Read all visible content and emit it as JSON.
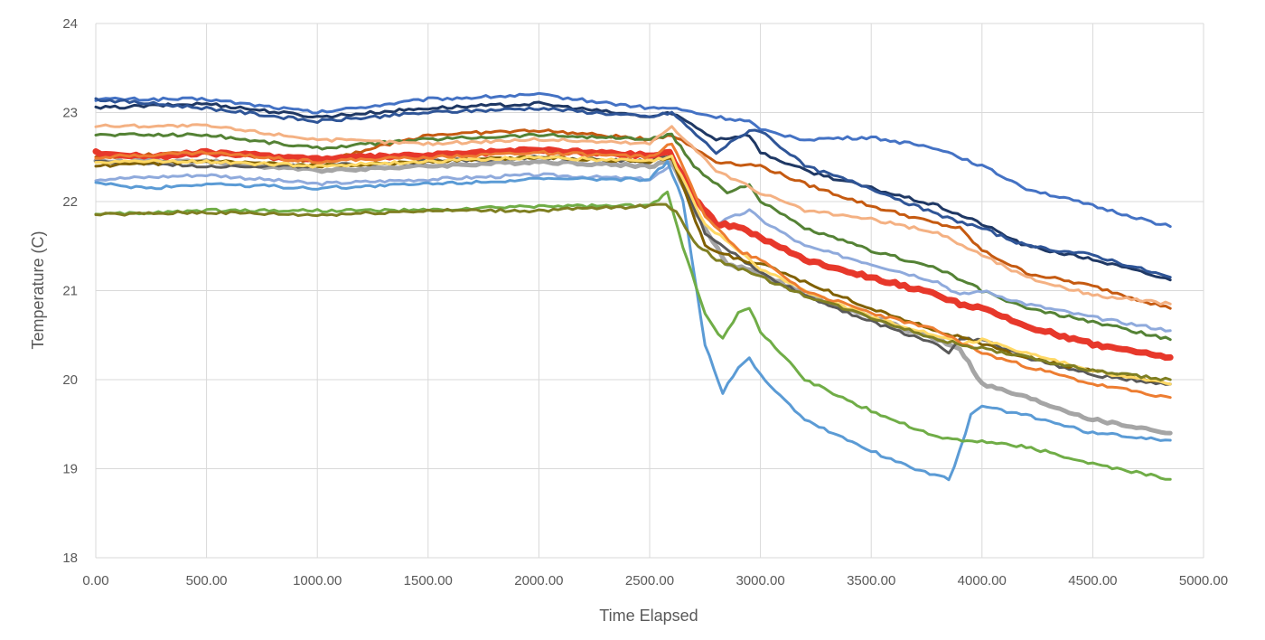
{
  "chart_data": {
    "type": "line",
    "title": "",
    "xlabel": "Time Elapsed",
    "ylabel": "Temperature (C)",
    "xlim": [
      0,
      5000
    ],
    "ylim": [
      18,
      24
    ],
    "xticks": [
      0,
      500,
      1000,
      1500,
      2000,
      2500,
      3000,
      3500,
      4000,
      4500,
      5000
    ],
    "xtick_labels": [
      "0.00",
      "500.00",
      "1000.00",
      "1500.00",
      "2000.00",
      "2500.00",
      "3000.00",
      "3500.00",
      "4000.00",
      "4500.00",
      "5000.00"
    ],
    "yticks": [
      18,
      19,
      20,
      21,
      22,
      23,
      24
    ],
    "ytick_labels": [
      "18",
      "19",
      "20",
      "21",
      "22",
      "23",
      "24"
    ],
    "grid": true,
    "legend": "none",
    "series": [
      {
        "color": "#4472c4",
        "width": 3,
        "x": [
          0,
          500,
          1000,
          1500,
          2000,
          2500,
          2600,
          2800,
          2950,
          3000,
          3200,
          3500,
          3800,
          4000,
          4200,
          4500,
          4850
        ],
        "y": [
          23.15,
          23.15,
          23.0,
          23.15,
          23.2,
          23.05,
          23.05,
          22.95,
          22.9,
          22.8,
          22.7,
          22.72,
          22.6,
          22.4,
          22.15,
          21.95,
          21.72
        ]
      },
      {
        "color": "#1f3864",
        "width": 3,
        "x": [
          0,
          500,
          1000,
          1500,
          2000,
          2500,
          2600,
          2800,
          2950,
          3000,
          3200,
          3500,
          3800,
          4000,
          4200,
          4500,
          4850
        ],
        "y": [
          23.05,
          23.1,
          22.95,
          23.05,
          23.1,
          22.95,
          23.0,
          22.7,
          22.75,
          22.55,
          22.35,
          22.15,
          21.95,
          21.75,
          21.5,
          21.35,
          21.12
        ]
      },
      {
        "color": "#2f5597",
        "width": 3,
        "x": [
          0,
          500,
          1000,
          1500,
          2000,
          2500,
          2600,
          2800,
          2950,
          3000,
          3200,
          3500,
          3800,
          4000,
          4200,
          4500,
          4850
        ],
        "y": [
          23.15,
          23.05,
          22.9,
          23.0,
          23.05,
          22.95,
          23.0,
          22.55,
          22.8,
          22.8,
          22.4,
          22.15,
          21.85,
          21.7,
          21.5,
          21.4,
          21.15
        ]
      },
      {
        "color": "#c55a11",
        "width": 3,
        "x": [
          0,
          500,
          1000,
          1500,
          2000,
          2500,
          2600,
          2800,
          3000,
          3200,
          3500,
          3800,
          3900,
          4000,
          4200,
          4500,
          4850
        ],
        "y": [
          22.5,
          22.55,
          22.45,
          22.75,
          22.8,
          22.7,
          22.75,
          22.45,
          22.4,
          22.2,
          21.95,
          21.75,
          21.7,
          21.45,
          21.2,
          21.05,
          20.8
        ]
      },
      {
        "color": "#548235",
        "width": 3,
        "x": [
          0,
          500,
          1000,
          1500,
          2000,
          2500,
          2600,
          2700,
          2850,
          2950,
          3000,
          3200,
          3500,
          3800,
          4000,
          4200,
          4500,
          4850
        ],
        "y": [
          22.75,
          22.75,
          22.6,
          22.7,
          22.75,
          22.7,
          22.75,
          22.4,
          22.1,
          22.2,
          22.0,
          21.7,
          21.45,
          21.25,
          21.0,
          20.8,
          20.65,
          20.45
        ]
      },
      {
        "color": "#f4b183",
        "width": 3,
        "x": [
          0,
          500,
          1000,
          1500,
          2000,
          2500,
          2600,
          2800,
          3000,
          3200,
          3500,
          3800,
          4000,
          4200,
          4500,
          4850
        ],
        "y": [
          22.85,
          22.85,
          22.7,
          22.65,
          22.7,
          22.65,
          22.85,
          22.35,
          22.1,
          21.9,
          21.8,
          21.65,
          21.4,
          21.15,
          20.95,
          20.85
        ]
      },
      {
        "color": "#8faadc",
        "width": 3,
        "x": [
          0,
          500,
          1000,
          1500,
          2000,
          2500,
          2600,
          2800,
          2950,
          3000,
          3200,
          3500,
          3800,
          3900,
          4000,
          4200,
          4500,
          4850
        ],
        "y": [
          22.25,
          22.3,
          22.2,
          22.25,
          22.3,
          22.25,
          22.4,
          21.75,
          21.9,
          21.8,
          21.5,
          21.3,
          21.1,
          20.95,
          21.0,
          20.85,
          20.7,
          20.55
        ]
      },
      {
        "color": "#e7382b",
        "width": 7,
        "x": [
          0,
          250,
          500,
          1000,
          1500,
          2000,
          2500,
          2590,
          2700,
          2800,
          2900,
          3000,
          3200,
          3500,
          3800,
          3900,
          4000,
          4200,
          4500,
          4850
        ],
        "y": [
          22.55,
          22.5,
          22.55,
          22.48,
          22.52,
          22.58,
          22.52,
          22.55,
          22.05,
          21.75,
          21.72,
          21.6,
          21.35,
          21.15,
          20.95,
          20.85,
          20.8,
          20.6,
          20.4,
          20.25
        ]
      },
      {
        "color": "#a5a5a5",
        "width": 5,
        "x": [
          0,
          500,
          1000,
          1500,
          2000,
          2500,
          2600,
          2700,
          2850,
          3000,
          3200,
          3500,
          3800,
          3900,
          4000,
          4200,
          4500,
          4850
        ],
        "y": [
          22.45,
          22.45,
          22.35,
          22.4,
          22.45,
          22.4,
          22.45,
          21.9,
          21.3,
          21.2,
          20.95,
          20.7,
          20.45,
          20.35,
          19.95,
          19.8,
          19.55,
          19.4
        ]
      },
      {
        "color": "#595959",
        "width": 3,
        "x": [
          0,
          500,
          1000,
          1500,
          2000,
          2500,
          2600,
          2750,
          3000,
          3200,
          3500,
          3800,
          3850,
          3900,
          4000,
          4200,
          4500,
          4850
        ],
        "y": [
          22.45,
          22.4,
          22.4,
          22.45,
          22.5,
          22.45,
          22.5,
          21.65,
          21.2,
          20.95,
          20.65,
          20.4,
          20.3,
          20.45,
          20.45,
          20.25,
          20.05,
          19.95
        ]
      },
      {
        "color": "#806000",
        "width": 3,
        "x": [
          0,
          500,
          1000,
          1500,
          2000,
          2500,
          2600,
          2750,
          2900,
          3000,
          3200,
          3500,
          3800,
          4000,
          4200,
          4500,
          4850
        ],
        "y": [
          22.4,
          22.45,
          22.4,
          22.45,
          22.5,
          22.45,
          22.5,
          21.5,
          21.35,
          21.3,
          21.1,
          20.8,
          20.55,
          20.4,
          20.25,
          20.1,
          19.95
        ]
      },
      {
        "color": "#ffd966",
        "width": 3,
        "x": [
          0,
          500,
          1000,
          1500,
          2000,
          2500,
          2600,
          2750,
          3000,
          3200,
          3500,
          3800,
          3900,
          4000,
          4200,
          4500,
          4850
        ],
        "y": [
          22.45,
          22.45,
          22.4,
          22.45,
          22.5,
          22.45,
          22.5,
          21.75,
          21.25,
          21.0,
          20.7,
          20.5,
          20.4,
          20.45,
          20.3,
          20.1,
          19.95
        ]
      },
      {
        "color": "#ed7d31",
        "width": 3,
        "x": [
          0,
          500,
          1000,
          1500,
          2000,
          2500,
          2600,
          2750,
          2900,
          3000,
          3200,
          3500,
          3800,
          4000,
          4200,
          4500,
          4850
        ],
        "y": [
          22.5,
          22.55,
          22.45,
          22.5,
          22.55,
          22.5,
          22.65,
          21.85,
          21.45,
          21.35,
          21.0,
          20.75,
          20.55,
          20.3,
          20.15,
          19.95,
          19.8
        ]
      },
      {
        "color": "#5b9bd5",
        "width": 3,
        "x": [
          0,
          250,
          500,
          1000,
          1500,
          2000,
          2500,
          2580,
          2650,
          2750,
          2830,
          2900,
          2950,
          3000,
          3200,
          3500,
          3700,
          3850,
          3900,
          3950,
          4000,
          4200,
          4500,
          4850
        ],
        "y": [
          22.2,
          22.15,
          22.2,
          22.15,
          22.2,
          22.25,
          22.25,
          22.45,
          22.0,
          20.4,
          19.85,
          20.15,
          20.25,
          20.05,
          19.55,
          19.2,
          19.0,
          18.88,
          19.2,
          19.6,
          19.7,
          19.6,
          19.4,
          19.32
        ]
      },
      {
        "color": "#70ad47",
        "width": 3,
        "x": [
          0,
          500,
          1000,
          1500,
          2000,
          2500,
          2580,
          2650,
          2750,
          2830,
          2900,
          2950,
          3000,
          3200,
          3500,
          3800,
          4000,
          4200,
          4500,
          4850
        ],
        "y": [
          21.85,
          21.9,
          21.9,
          21.9,
          21.95,
          21.95,
          22.1,
          21.5,
          20.75,
          20.45,
          20.75,
          20.8,
          20.55,
          20.0,
          19.65,
          19.35,
          19.3,
          19.25,
          19.05,
          18.88
        ]
      },
      {
        "color": "#7f7f22",
        "width": 3,
        "x": [
          0,
          500,
          1000,
          1500,
          2000,
          2500,
          2550,
          2620,
          2700,
          2800,
          2900,
          3000,
          3200,
          3500,
          3800,
          4000,
          4200,
          4500,
          4850
        ],
        "y": [
          21.85,
          21.88,
          21.85,
          21.9,
          21.9,
          21.95,
          21.98,
          21.9,
          21.55,
          21.35,
          21.25,
          21.15,
          20.95,
          20.7,
          20.45,
          20.35,
          20.25,
          20.1,
          20.0
        ]
      }
    ]
  }
}
